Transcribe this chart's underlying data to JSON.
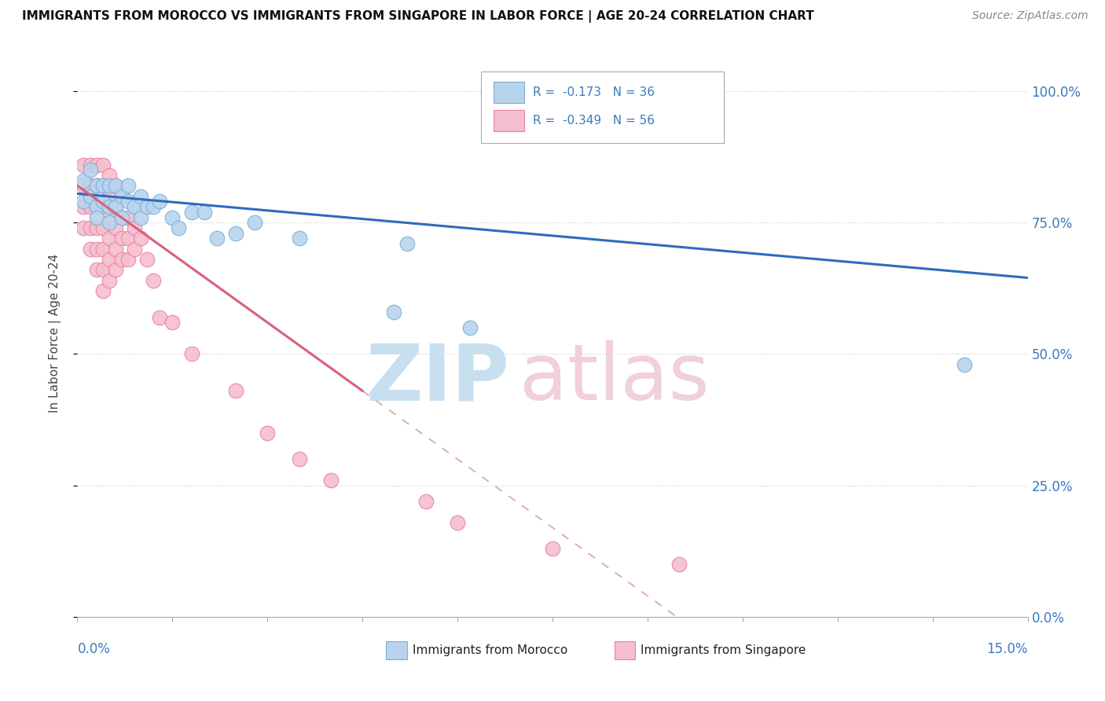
{
  "title": "IMMIGRANTS FROM MOROCCO VS IMMIGRANTS FROM SINGAPORE IN LABOR FORCE | AGE 20-24 CORRELATION CHART",
  "source": "Source: ZipAtlas.com",
  "ylabel": "In Labor Force | Age 20-24",
  "xlim": [
    0.0,
    0.15
  ],
  "ylim": [
    0.0,
    1.08
  ],
  "morocco_color": "#b8d4ed",
  "singapore_color": "#f5bece",
  "morocco_edge": "#7aaed6",
  "singapore_edge": "#e8829e",
  "trend_morocco_color": "#2f6bbf",
  "trend_singapore_color": "#d9607a",
  "trend_dashed_color": "#e0b0bc",
  "morocco_R": -0.173,
  "morocco_N": 36,
  "singapore_R": -0.349,
  "singapore_N": 56,
  "ytick_values": [
    0.0,
    0.25,
    0.5,
    0.75,
    1.0
  ],
  "morocco_scatter_x": [
    0.001,
    0.001,
    0.002,
    0.002,
    0.003,
    0.003,
    0.003,
    0.004,
    0.004,
    0.005,
    0.005,
    0.005,
    0.006,
    0.006,
    0.007,
    0.007,
    0.008,
    0.008,
    0.009,
    0.01,
    0.01,
    0.011,
    0.012,
    0.013,
    0.015,
    0.016,
    0.018,
    0.02,
    0.022,
    0.025,
    0.028,
    0.035,
    0.05,
    0.062,
    0.14,
    0.052
  ],
  "morocco_scatter_y": [
    0.83,
    0.79,
    0.85,
    0.8,
    0.82,
    0.78,
    0.76,
    0.82,
    0.79,
    0.82,
    0.78,
    0.75,
    0.82,
    0.78,
    0.8,
    0.76,
    0.82,
    0.79,
    0.78,
    0.8,
    0.76,
    0.78,
    0.78,
    0.79,
    0.76,
    0.74,
    0.77,
    0.77,
    0.72,
    0.73,
    0.75,
    0.72,
    0.58,
    0.55,
    0.48,
    0.71
  ],
  "singapore_scatter_x": [
    0.001,
    0.001,
    0.001,
    0.001,
    0.002,
    0.002,
    0.002,
    0.002,
    0.002,
    0.003,
    0.003,
    0.003,
    0.003,
    0.003,
    0.003,
    0.004,
    0.004,
    0.004,
    0.004,
    0.004,
    0.004,
    0.004,
    0.005,
    0.005,
    0.005,
    0.005,
    0.005,
    0.005,
    0.006,
    0.006,
    0.006,
    0.006,
    0.006,
    0.007,
    0.007,
    0.007,
    0.007,
    0.008,
    0.008,
    0.008,
    0.009,
    0.009,
    0.01,
    0.011,
    0.012,
    0.013,
    0.015,
    0.018,
    0.025,
    0.03,
    0.035,
    0.04,
    0.055,
    0.06,
    0.075,
    0.095
  ],
  "singapore_scatter_y": [
    0.86,
    0.82,
    0.78,
    0.74,
    0.86,
    0.82,
    0.78,
    0.74,
    0.7,
    0.86,
    0.82,
    0.78,
    0.74,
    0.7,
    0.66,
    0.86,
    0.82,
    0.78,
    0.74,
    0.7,
    0.66,
    0.62,
    0.84,
    0.8,
    0.76,
    0.72,
    0.68,
    0.64,
    0.82,
    0.78,
    0.74,
    0.7,
    0.66,
    0.8,
    0.76,
    0.72,
    0.68,
    0.76,
    0.72,
    0.68,
    0.74,
    0.7,
    0.72,
    0.68,
    0.64,
    0.57,
    0.56,
    0.5,
    0.43,
    0.35,
    0.3,
    0.26,
    0.22,
    0.18,
    0.13,
    0.1
  ]
}
